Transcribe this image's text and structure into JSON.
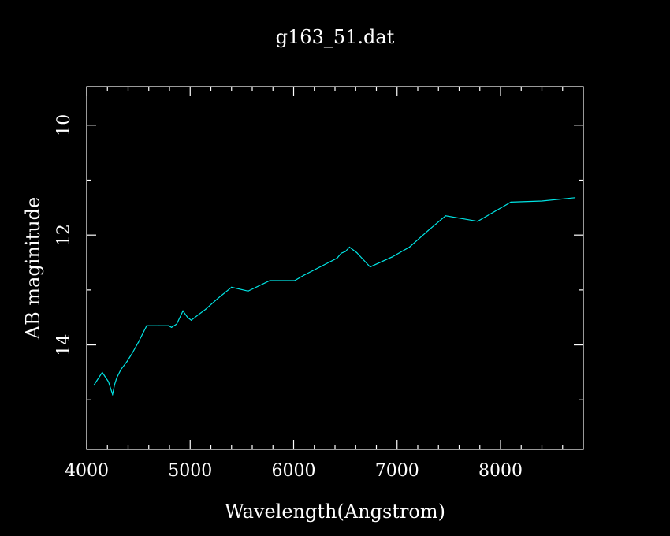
{
  "chart_data": {
    "type": "line",
    "title": "g163_51.dat",
    "xlabel": "Wavelength(Angstrom)",
    "ylabel": "AB maginitude",
    "xlim": [
      4000,
      8800
    ],
    "ylim": [
      15.9,
      9.3
    ],
    "y_inverted": true,
    "x_major_ticks": [
      4000,
      5000,
      6000,
      7000,
      8000
    ],
    "x_minor_ticks": [
      4200,
      4400,
      4600,
      4800,
      5200,
      5400,
      5600,
      5800,
      6200,
      6400,
      6600,
      6800,
      7200,
      7400,
      7600,
      7800,
      8200,
      8400,
      8600
    ],
    "x_tick_labels": [
      "4000",
      "5000",
      "6000",
      "7000",
      "8000"
    ],
    "y_major_ticks": [
      10,
      12,
      14
    ],
    "y_minor_ticks": [
      11,
      13,
      15
    ],
    "y_tick_labels": [
      "10",
      "12",
      "14"
    ],
    "grid": false,
    "background": "#000000",
    "foreground": "#ffffff",
    "series": [
      {
        "color": "#00e5e5",
        "x": [
          4070,
          4150,
          4210,
          4250,
          4270,
          4290,
          4330,
          4390,
          4440,
          4500,
          4580,
          4700,
          4790,
          4820,
          4870,
          4930,
          4975,
          5010,
          5080,
          5150,
          5270,
          5400,
          5560,
          5770,
          6010,
          6100,
          6420,
          6460,
          6500,
          6540,
          6610,
          6660,
          6740,
          6950,
          7120,
          7300,
          7470,
          7780,
          8100,
          8400,
          8720
        ],
        "y": [
          14.73,
          14.5,
          14.67,
          14.9,
          14.72,
          14.6,
          14.45,
          14.3,
          14.15,
          13.95,
          13.65,
          13.65,
          13.65,
          13.68,
          13.62,
          13.38,
          13.5,
          13.55,
          13.45,
          13.35,
          13.15,
          12.95,
          13.02,
          12.83,
          12.83,
          12.73,
          12.42,
          12.33,
          12.3,
          12.22,
          12.32,
          12.42,
          12.58,
          12.4,
          12.22,
          11.92,
          11.65,
          11.75,
          11.4,
          11.38,
          11.32
        ]
      }
    ]
  }
}
